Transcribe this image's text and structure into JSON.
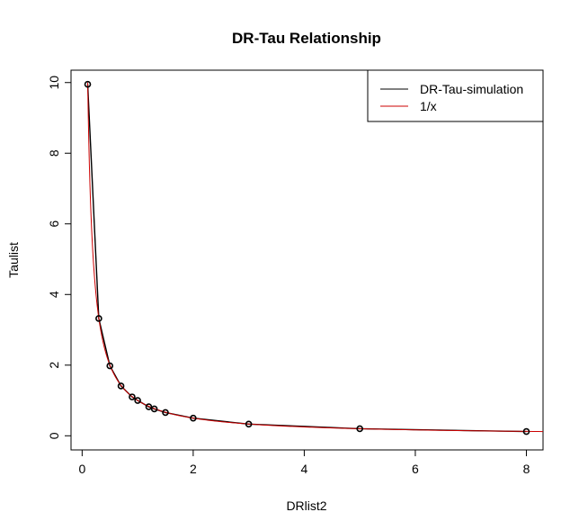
{
  "chart_data": {
    "type": "line",
    "title": "DR-Tau Relationship",
    "xlabel": "DRlist2",
    "ylabel": "Taulist",
    "xlim": [
      -0.2,
      8.3
    ],
    "ylim": [
      -0.4,
      10.35
    ],
    "x_ticks": [
      "0",
      "2",
      "4",
      "6",
      "8"
    ],
    "y_ticks": [
      "0",
      "2",
      "4",
      "6",
      "8",
      "10"
    ],
    "grid": false,
    "legend_position": "top-right",
    "series": [
      {
        "name": "DR-Tau-simulation",
        "color": "#000000",
        "markers": true,
        "x": [
          0.1,
          0.3,
          0.5,
          0.7,
          0.9,
          1.0,
          1.2,
          1.3,
          1.5,
          2.0,
          3.0,
          5.0,
          8.0
        ],
        "y": [
          9.95,
          3.32,
          1.98,
          1.41,
          1.1,
          1.0,
          0.82,
          0.76,
          0.66,
          0.5,
          0.33,
          0.2,
          0.12
        ]
      },
      {
        "name": "1/x",
        "color": "#cc0000",
        "markers": false,
        "function": "1/x",
        "domain": [
          0.1,
          8.3
        ]
      }
    ]
  }
}
